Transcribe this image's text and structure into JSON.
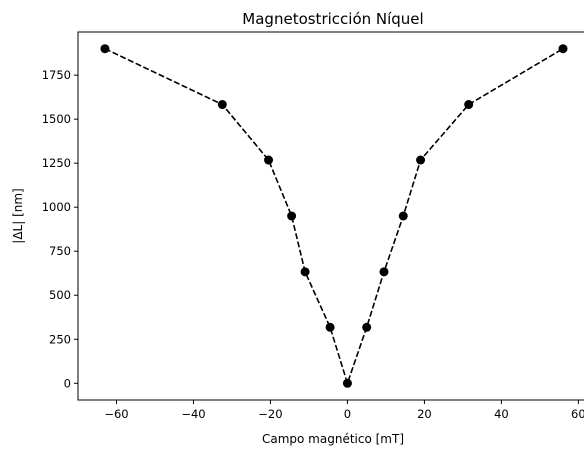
{
  "chart_data": {
    "type": "line",
    "title": "Magnetostricción Níquel",
    "xlabel": "Campo magnético [mT]",
    "ylabel": "|ΔL| [nm]",
    "xlim": [
      -70,
      62.5
    ],
    "ylim": [
      -95,
      1995
    ],
    "x_ticks": [
      -60,
      -40,
      -20,
      0,
      20,
      40,
      60
    ],
    "y_ticks": [
      0,
      250,
      500,
      750,
      1000,
      1250,
      1500,
      1750
    ],
    "x_tick_labels": [
      "−60",
      "−40",
      "−20",
      "0",
      "20",
      "40",
      "60"
    ],
    "y_tick_labels": [
      "0",
      "250",
      "500",
      "750",
      "1000",
      "1250",
      "1500",
      "1750"
    ],
    "grid": false,
    "series": [
      {
        "line_style": "dashed",
        "marker": "circle",
        "color": "#000000",
        "x": [
          -63,
          -32.5,
          -20.5,
          -14.5,
          -11,
          -4.5,
          0,
          5,
          9.5,
          14.5,
          19,
          31.5,
          56
        ],
        "y": [
          1900,
          1583,
          1268,
          950,
          633,
          318,
          0,
          318,
          633,
          950,
          1268,
          1583,
          1900
        ]
      }
    ]
  }
}
